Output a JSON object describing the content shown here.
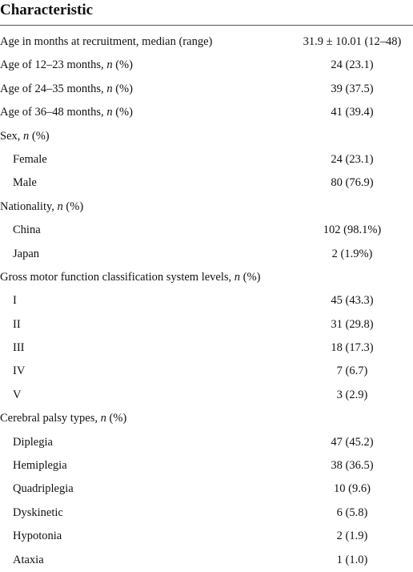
{
  "header": {
    "title": "Characteristic"
  },
  "table": {
    "rows": [
      {
        "label": "Age in months at recruitment, median (range)",
        "value": "31.9 ± 10.01 (12–48)"
      },
      {
        "label": "Age of 12–23 months, n (%)",
        "value": "24 (23.1)"
      },
      {
        "label": "Age of 24–35 months, n (%)",
        "value": "39 (37.5)"
      },
      {
        "label": "Age of 36–48 months, n (%)",
        "value": "41 (39.4)"
      },
      {
        "label": "Sex, n (%)",
        "items": [
          {
            "label": "Female",
            "value": "24 (23.1)"
          },
          {
            "label": "Male",
            "value": "80 (76.9)"
          }
        ]
      },
      {
        "label": "Nationality, n (%)",
        "items": [
          {
            "label": "China",
            "value": "102 (98.1%)"
          },
          {
            "label": "Japan",
            "value": "2 (1.9%)"
          }
        ]
      },
      {
        "label": "Gross motor function classification system levels, n (%)",
        "items": [
          {
            "label": "I",
            "value": "45 (43.3)"
          },
          {
            "label": "II",
            "value": "31 (29.8)"
          },
          {
            "label": "III",
            "value": "18 (17.3)"
          },
          {
            "label": "IV",
            "value": "7 (6.7)"
          },
          {
            "label": "V",
            "value": "3 (2.9)"
          }
        ]
      },
      {
        "label": "Cerebral palsy types, n (%)",
        "items": [
          {
            "label": "Diplegia",
            "value": "47 (45.2)"
          },
          {
            "label": "Hemiplegia",
            "value": "38 (36.5)"
          },
          {
            "label": "Quadriplegia",
            "value": "10 (9.6)"
          },
          {
            "label": "Dyskinetic",
            "value": "6 (5.8)"
          },
          {
            "label": "Hypotonia",
            "value": "2 (1.9)"
          },
          {
            "label": "Ataxia",
            "value": "1 (1.0)"
          }
        ]
      }
    ]
  }
}
